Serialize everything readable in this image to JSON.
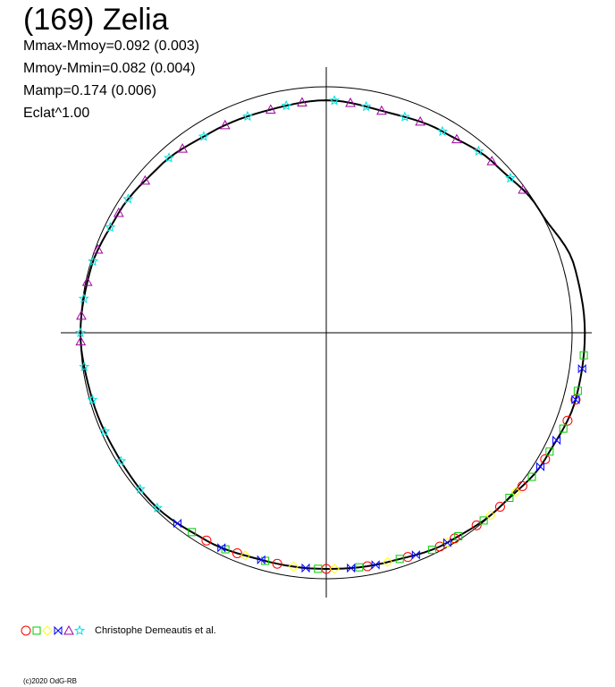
{
  "title": "(169) Zelia",
  "stats": [
    "Mmax-Mmoy=0.092 (0.003)",
    "Mmoy-Mmin=0.082 (0.004)",
    "Mamp=0.174 (0.006)",
    "Eclat^1.00"
  ],
  "legend": {
    "markers": [
      {
        "shape": "circle-icon",
        "color": "#ff0000"
      },
      {
        "shape": "square-icon",
        "color": "#00cc00"
      },
      {
        "shape": "diamond-icon",
        "color": "#ffff00"
      },
      {
        "shape": "bowtie-icon",
        "color": "#0000ff"
      },
      {
        "shape": "triangle-icon",
        "color": "#a000a0"
      },
      {
        "shape": "star-icon",
        "color": "#00e0e0"
      }
    ],
    "text": "Christophe Demeautis et al."
  },
  "copyright": "(c)2020 OdG-RB",
  "chart_data": {
    "type": "line",
    "projection": "polar",
    "reference_circle_radius": 1.0,
    "series": [
      {
        "angle_deg": [
          0,
          15,
          30,
          45,
          60,
          75,
          90,
          105,
          120,
          135,
          150,
          165,
          180,
          195,
          210,
          225,
          240,
          255,
          270,
          285,
          300,
          315,
          330,
          345
        ],
        "radius": [
          1.052,
          1.045,
          1.0,
          0.97,
          0.945,
          0.93,
          0.945,
          0.935,
          0.94,
          0.958,
          0.975,
          0.993,
          1.0,
          0.99,
          0.985,
          0.99,
          0.975,
          0.96,
          0.96,
          0.965,
          0.985,
          1.0,
          1.028,
          1.05
        ]
      }
    ],
    "markers": [
      {
        "color": "#ff0000",
        "shape": "circle",
        "angle_deg": [
          345,
          340,
          330,
          322,
          315,
          308,
          302,
          298,
          290,
          280,
          270,
          258,
          248,
          240
        ]
      },
      {
        "color": "#00cc00",
        "shape": "square",
        "angle_deg": [
          355,
          347,
          338,
          332,
          325,
          318,
          310,
          303,
          296,
          288,
          278,
          268,
          255,
          245,
          236
        ]
      },
      {
        "color": "#ffff00",
        "shape": "diamond",
        "angle_deg": [
          320,
          312,
          300,
          285,
          272,
          262,
          250
        ]
      },
      {
        "color": "#0000ff",
        "shape": "bowtie",
        "angle_deg": [
          352,
          345,
          335,
          328,
          300,
          292,
          282,
          276,
          265,
          254,
          244,
          232
        ]
      },
      {
        "color": "#a000a0",
        "shape": "triangle",
        "angle_deg": [
          182,
          176,
          168,
          160,
          150,
          140,
          128,
          116,
          104,
          96,
          84,
          76,
          66,
          56,
          46,
          36
        ]
      },
      {
        "color": "#00e0e0",
        "shape": "star",
        "angle_deg": [
          226,
          220,
          212,
          204,
          196,
          188,
          180,
          172,
          163,
          154,
          146,
          132,
          122,
          110,
          100,
          88,
          80,
          70,
          60,
          50,
          40
        ]
      }
    ],
    "title": "(169) Zelia"
  }
}
